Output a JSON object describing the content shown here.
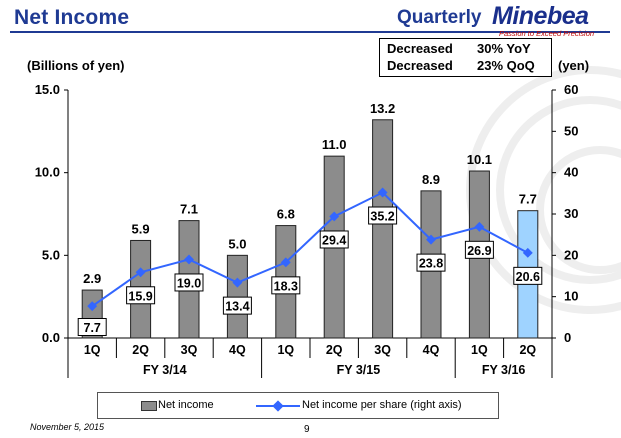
{
  "header": {
    "title": "Net Income",
    "period": "Quarterly",
    "brand": "Minebea",
    "tagline": "Passion to Exceed Precision"
  },
  "summary": {
    "line1_label": "Decreased",
    "line1_value": "30% YoY",
    "line2_label": "Decreased",
    "line2_value": "23% QoQ"
  },
  "footer": {
    "date": "November 5, 2015",
    "page": "9"
  },
  "colors": {
    "bar": "#8c8c8c",
    "bar_highlight": "#9fd3ff",
    "line": "#3366ff",
    "title": "#1f3a93"
  },
  "chart_data": {
    "type": "bar",
    "categories": [
      "1Q",
      "2Q",
      "3Q",
      "4Q",
      "1Q",
      "2Q",
      "3Q",
      "4Q",
      "1Q",
      "2Q"
    ],
    "groups": [
      {
        "label": "FY 3/14",
        "count": 4
      },
      {
        "label": "FY 3/15",
        "count": 4
      },
      {
        "label": "FY 3/16",
        "count": 2
      }
    ],
    "series": [
      {
        "name": "Net income",
        "type": "bar",
        "axis": "left",
        "values": [
          2.9,
          5.9,
          7.1,
          5.0,
          6.8,
          11.0,
          13.2,
          8.9,
          10.1,
          7.7
        ],
        "labels": [
          "2.9",
          "5.9",
          "7.1",
          "5.0",
          "6.8",
          "11.0",
          "13.2",
          "8.9",
          "10.1",
          "7.7"
        ],
        "highlight_index": 9
      },
      {
        "name": "Net income per share (right axis)",
        "type": "line",
        "axis": "right",
        "values": [
          7.7,
          15.9,
          19.0,
          13.4,
          18.3,
          29.4,
          35.2,
          23.8,
          26.9,
          20.6
        ],
        "labels": [
          "7.7",
          "15.9",
          "19.0",
          "13.4",
          "18.3",
          "29.4",
          "35.2",
          "23.8",
          "26.9",
          "20.6"
        ]
      }
    ],
    "ylabel_left": "(Billions of yen)",
    "ylabel_right": "(yen)",
    "ylim_left": [
      0,
      15
    ],
    "ylim_right": [
      0,
      60
    ],
    "yticks_left": [
      "0.0",
      "5.0",
      "10.0",
      "15.0"
    ],
    "yticks_right": [
      "0",
      "10",
      "20",
      "30",
      "40",
      "50",
      "60"
    ],
    "grid": false,
    "legend_position": "bottom"
  }
}
